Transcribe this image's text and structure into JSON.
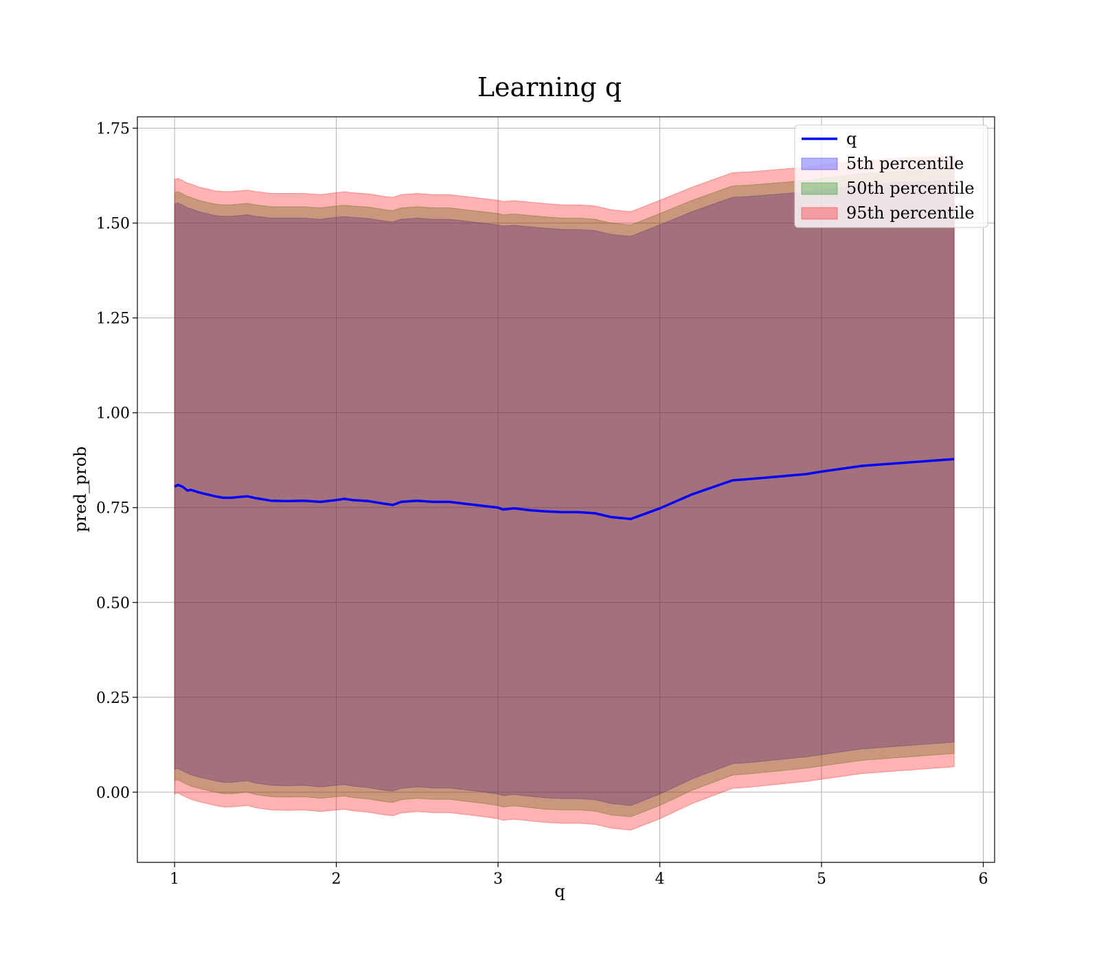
{
  "chart_data": {
    "type": "area",
    "title": "Learning q",
    "xlabel": "q",
    "ylabel": "pred_prob",
    "xlim": [
      0.77,
      6.07
    ],
    "ylim": [
      -0.185,
      1.78
    ],
    "xticks": [
      "1",
      "2",
      "3",
      "4",
      "5",
      "6"
    ],
    "xtick_values": [
      1,
      2,
      3,
      4,
      5,
      6
    ],
    "yticks": [
      "0.00",
      "0.25",
      "0.50",
      "0.75",
      "1.00",
      "1.25",
      "1.50",
      "1.75"
    ],
    "ytick_values": [
      0,
      0.25,
      0.5,
      0.75,
      1.0,
      1.25,
      1.5,
      1.75
    ],
    "grid": true,
    "legend_position": "top-right",
    "x": [
      1.0,
      1.02,
      1.05,
      1.08,
      1.1,
      1.15,
      1.2,
      1.25,
      1.3,
      1.35,
      1.4,
      1.45,
      1.5,
      1.6,
      1.7,
      1.8,
      1.9,
      2.0,
      2.05,
      2.1,
      2.2,
      2.3,
      2.35,
      2.4,
      2.5,
      2.6,
      2.7,
      2.8,
      2.9,
      3.0,
      3.03,
      3.1,
      3.2,
      3.3,
      3.4,
      3.5,
      3.6,
      3.7,
      3.82,
      4.0,
      4.2,
      4.45,
      4.55,
      4.9,
      5.0,
      5.25,
      5.5,
      5.82
    ],
    "series": [
      {
        "name": "q",
        "kind": "line",
        "color": "#0000ff",
        "values": [
          0.805,
          0.81,
          0.805,
          0.795,
          0.797,
          0.79,
          0.785,
          0.78,
          0.776,
          0.776,
          0.778,
          0.78,
          0.775,
          0.768,
          0.767,
          0.768,
          0.765,
          0.77,
          0.773,
          0.77,
          0.767,
          0.76,
          0.757,
          0.765,
          0.768,
          0.765,
          0.765,
          0.76,
          0.755,
          0.75,
          0.745,
          0.748,
          0.743,
          0.74,
          0.738,
          0.738,
          0.735,
          0.725,
          0.72,
          0.748,
          0.785,
          0.822,
          0.825,
          0.838,
          0.845,
          0.86,
          0.868,
          0.878
        ]
      },
      {
        "name": "5th percentile",
        "kind": "band",
        "color": "#0000ff",
        "lower": [
          0.06,
          0.063,
          0.056,
          0.05,
          0.046,
          0.04,
          0.035,
          0.03,
          0.026,
          0.026,
          0.028,
          0.03,
          0.024,
          0.018,
          0.017,
          0.018,
          0.014,
          0.018,
          0.02,
          0.016,
          0.012,
          0.005,
          0.003,
          0.01,
          0.014,
          0.011,
          0.011,
          0.006,
          0.001,
          -0.005,
          -0.009,
          -0.006,
          -0.011,
          -0.015,
          -0.017,
          -0.017,
          -0.02,
          -0.03,
          -0.035,
          -0.005,
          0.035,
          0.075,
          0.078,
          0.093,
          0.099,
          0.114,
          0.122,
          0.132
        ],
        "upper": [
          1.55,
          1.553,
          1.547,
          1.54,
          1.538,
          1.53,
          1.525,
          1.52,
          1.518,
          1.518,
          1.52,
          1.522,
          1.518,
          1.513,
          1.513,
          1.513,
          1.51,
          1.515,
          1.517,
          1.515,
          1.512,
          1.505,
          1.503,
          1.51,
          1.513,
          1.51,
          1.51,
          1.505,
          1.5,
          1.495,
          1.492,
          1.494,
          1.49,
          1.486,
          1.483,
          1.483,
          1.48,
          1.47,
          1.465,
          1.495,
          1.53,
          1.568,
          1.57,
          1.582,
          1.588,
          1.6,
          1.607,
          1.612
        ]
      },
      {
        "name": "50th percentile",
        "kind": "band",
        "color": "#008000",
        "lower": [
          0.03,
          0.033,
          0.026,
          0.02,
          0.016,
          0.01,
          0.005,
          0.0,
          -0.004,
          -0.004,
          -0.002,
          0.0,
          -0.006,
          -0.012,
          -0.013,
          -0.012,
          -0.016,
          -0.012,
          -0.01,
          -0.014,
          -0.018,
          -0.025,
          -0.027,
          -0.02,
          -0.016,
          -0.019,
          -0.019,
          -0.024,
          -0.029,
          -0.035,
          -0.039,
          -0.036,
          -0.041,
          -0.045,
          -0.047,
          -0.047,
          -0.05,
          -0.06,
          -0.065,
          -0.035,
          0.005,
          0.045,
          0.048,
          0.063,
          0.069,
          0.084,
          0.092,
          0.102
        ],
        "upper": [
          1.58,
          1.583,
          1.577,
          1.57,
          1.568,
          1.56,
          1.555,
          1.55,
          1.548,
          1.548,
          1.55,
          1.552,
          1.548,
          1.543,
          1.543,
          1.543,
          1.54,
          1.545,
          1.547,
          1.545,
          1.542,
          1.535,
          1.533,
          1.54,
          1.543,
          1.54,
          1.54,
          1.535,
          1.53,
          1.525,
          1.522,
          1.524,
          1.52,
          1.516,
          1.513,
          1.513,
          1.51,
          1.5,
          1.495,
          1.525,
          1.56,
          1.598,
          1.6,
          1.612,
          1.618,
          1.63,
          1.637,
          1.642
        ]
      },
      {
        "name": "95th percentile",
        "kind": "band",
        "color": "#ff0000",
        "lower": [
          -0.005,
          -0.002,
          -0.009,
          -0.015,
          -0.019,
          -0.025,
          -0.03,
          -0.035,
          -0.039,
          -0.039,
          -0.037,
          -0.035,
          -0.041,
          -0.047,
          -0.048,
          -0.047,
          -0.051,
          -0.047,
          -0.045,
          -0.049,
          -0.053,
          -0.06,
          -0.062,
          -0.055,
          -0.051,
          -0.054,
          -0.054,
          -0.059,
          -0.064,
          -0.07,
          -0.074,
          -0.071,
          -0.076,
          -0.08,
          -0.082,
          -0.082,
          -0.085,
          -0.095,
          -0.1,
          -0.07,
          -0.03,
          0.01,
          0.013,
          0.028,
          0.034,
          0.049,
          0.057,
          0.067
        ],
        "upper": [
          1.615,
          1.618,
          1.612,
          1.605,
          1.603,
          1.595,
          1.59,
          1.585,
          1.583,
          1.583,
          1.585,
          1.587,
          1.583,
          1.578,
          1.578,
          1.578,
          1.575,
          1.58,
          1.582,
          1.58,
          1.577,
          1.57,
          1.568,
          1.575,
          1.578,
          1.575,
          1.575,
          1.57,
          1.565,
          1.56,
          1.557,
          1.559,
          1.555,
          1.551,
          1.548,
          1.548,
          1.545,
          1.535,
          1.53,
          1.56,
          1.595,
          1.633,
          1.635,
          1.647,
          1.653,
          1.665,
          1.672,
          1.677
        ]
      }
    ]
  }
}
